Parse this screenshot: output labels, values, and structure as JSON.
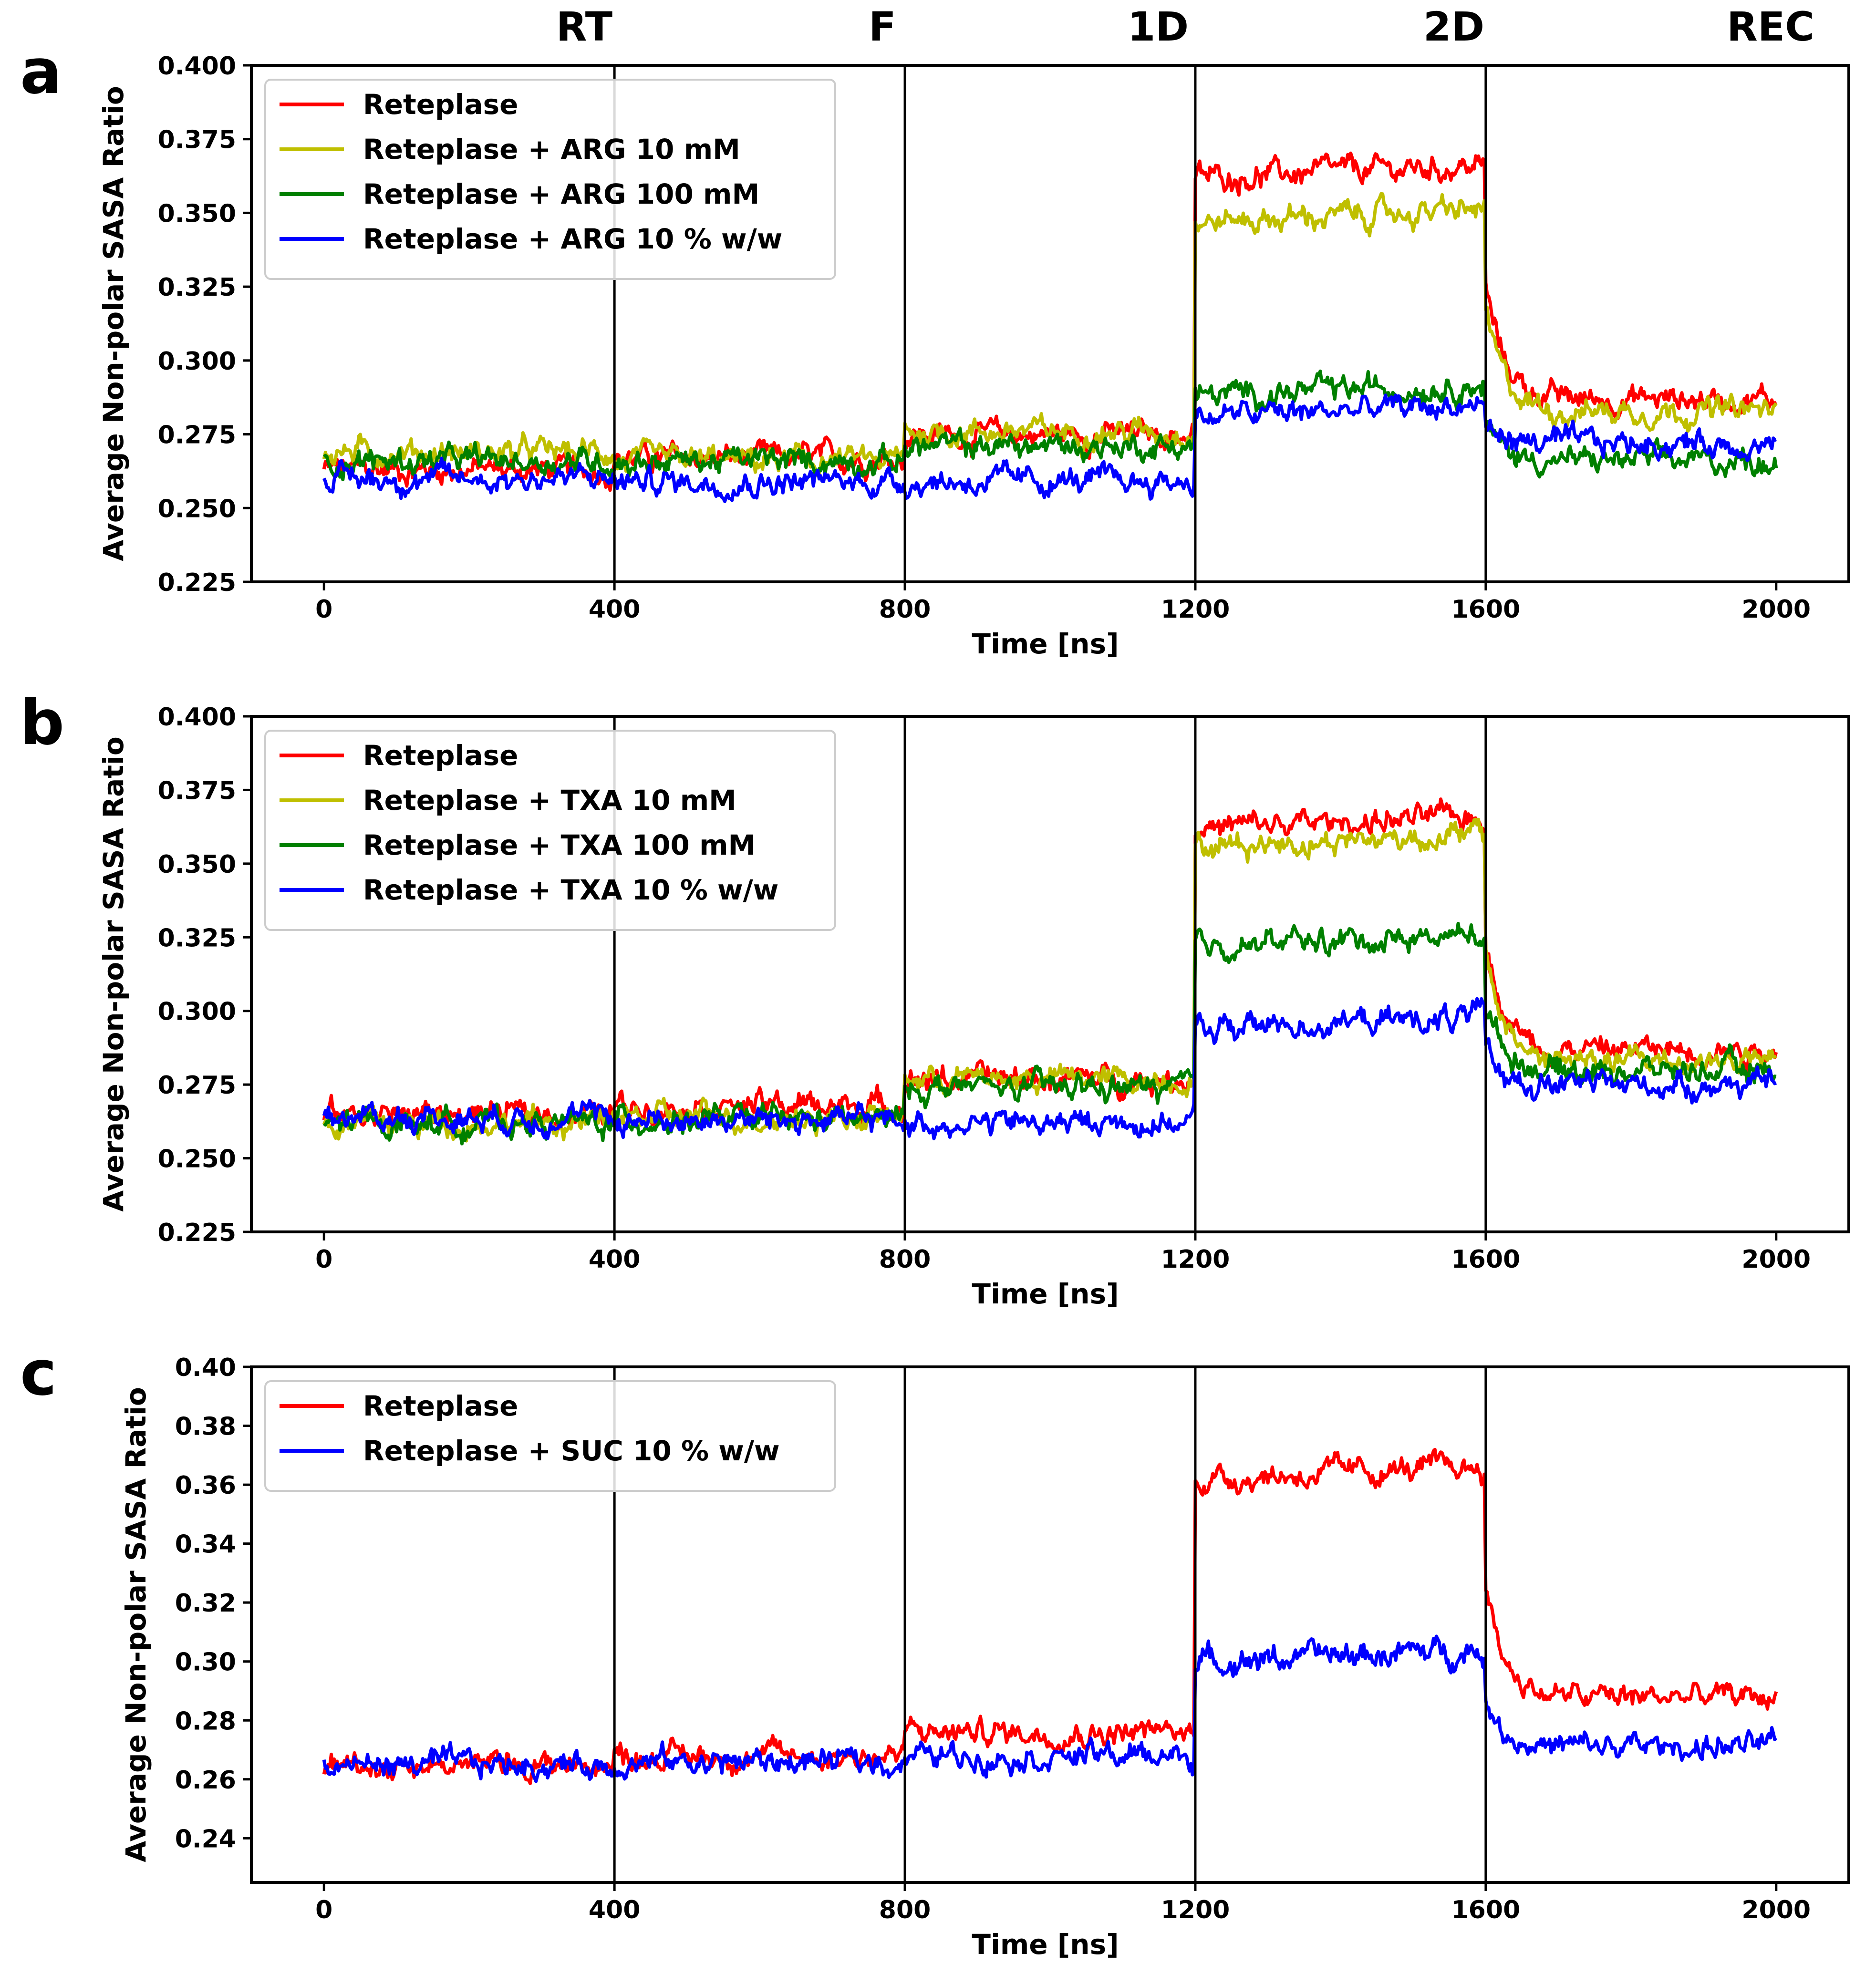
{
  "colors": {
    "red": "#ff0000",
    "yellow": "#bfbf00",
    "green": "#008000",
    "blue": "#0000ff"
  },
  "phases": [
    "RT",
    "F",
    "1D",
    "2D",
    "REC"
  ],
  "chart_data": [
    {
      "panel": "a",
      "type": "line",
      "xlabel": "Time [ns]",
      "ylabel": "Average Non-polar SASA Ratio",
      "xlim": [
        -100,
        2100
      ],
      "ylim": [
        0.225,
        0.4
      ],
      "xticks": [
        0,
        400,
        800,
        1200,
        1600,
        2000
      ],
      "yticks": [
        "0.225",
        "0.250",
        "0.275",
        "0.300",
        "0.325",
        "0.350",
        "0.375",
        "0.400"
      ],
      "phase_boundaries": [
        400,
        800,
        1200,
        1600
      ],
      "legend_position": "top-left",
      "series": [
        {
          "name": "Reteplase",
          "color": "#ff0000",
          "levels": [
            0.263,
            0.267,
            0.275,
            0.364,
            0.287
          ],
          "noise": 0.003
        },
        {
          "name": "Reteplase + ARG 10 mM",
          "color": "#bfbf00",
          "levels": [
            0.269,
            0.266,
            0.276,
            0.349,
            0.283
          ],
          "noise": 0.003
        },
        {
          "name": "Reteplase + ARG 100 mM",
          "color": "#008000",
          "levels": [
            0.266,
            0.266,
            0.271,
            0.29,
            0.266
          ],
          "noise": 0.003
        },
        {
          "name": "Reteplase + ARG 10 % w/w",
          "color": "#0000ff",
          "levels": [
            0.26,
            0.259,
            0.259,
            0.283,
            0.272
          ],
          "noise": 0.003
        }
      ]
    },
    {
      "panel": "b",
      "type": "line",
      "xlabel": "Time [ns]",
      "ylabel": "Average Non-polar SASA Ratio",
      "xlim": [
        -100,
        2100
      ],
      "ylim": [
        0.225,
        0.4
      ],
      "xticks": [
        0,
        400,
        800,
        1200,
        1600,
        2000
      ],
      "yticks": [
        "0.225",
        "0.250",
        "0.275",
        "0.300",
        "0.325",
        "0.350",
        "0.375",
        "0.400"
      ],
      "phase_boundaries": [
        400,
        800,
        1200,
        1600
      ],
      "legend_position": "top-left",
      "series": [
        {
          "name": "Reteplase",
          "color": "#ff0000",
          "levels": [
            0.265,
            0.268,
            0.277,
            0.364,
            0.287
          ],
          "noise": 0.003
        },
        {
          "name": "Reteplase + TXA 10 mM",
          "color": "#bfbf00",
          "levels": [
            0.262,
            0.264,
            0.277,
            0.358,
            0.283
          ],
          "noise": 0.003
        },
        {
          "name": "Reteplase + TXA 100 mM",
          "color": "#008000",
          "levels": [
            0.262,
            0.263,
            0.274,
            0.324,
            0.28
          ],
          "noise": 0.003
        },
        {
          "name": "Reteplase + TXA 10 % w/w",
          "color": "#0000ff",
          "levels": [
            0.264,
            0.263,
            0.262,
            0.296,
            0.275
          ],
          "noise": 0.003
        }
      ]
    },
    {
      "panel": "c",
      "type": "line",
      "xlabel": "Time [ns]",
      "ylabel": "Average Non-polar SASA Ratio",
      "xlim": [
        -100,
        2100
      ],
      "ylim": [
        0.225,
        0.4
      ],
      "xticks": [
        0,
        400,
        800,
        1200,
        1600,
        2000
      ],
      "yticks": [
        "0.24",
        "0.26",
        "0.28",
        "0.30",
        "0.32",
        "0.34",
        "0.36",
        "0.38",
        "0.40"
      ],
      "phase_boundaries": [
        400,
        800,
        1200,
        1600
      ],
      "legend_position": "top-left",
      "series": [
        {
          "name": "Reteplase",
          "color": "#ff0000",
          "levels": [
            0.265,
            0.268,
            0.276,
            0.364,
            0.288
          ],
          "noise": 0.003
        },
        {
          "name": "Reteplase + SUC 10 % w/w",
          "color": "#0000ff",
          "levels": [
            0.265,
            0.266,
            0.268,
            0.302,
            0.271
          ],
          "noise": 0.003
        }
      ]
    }
  ]
}
